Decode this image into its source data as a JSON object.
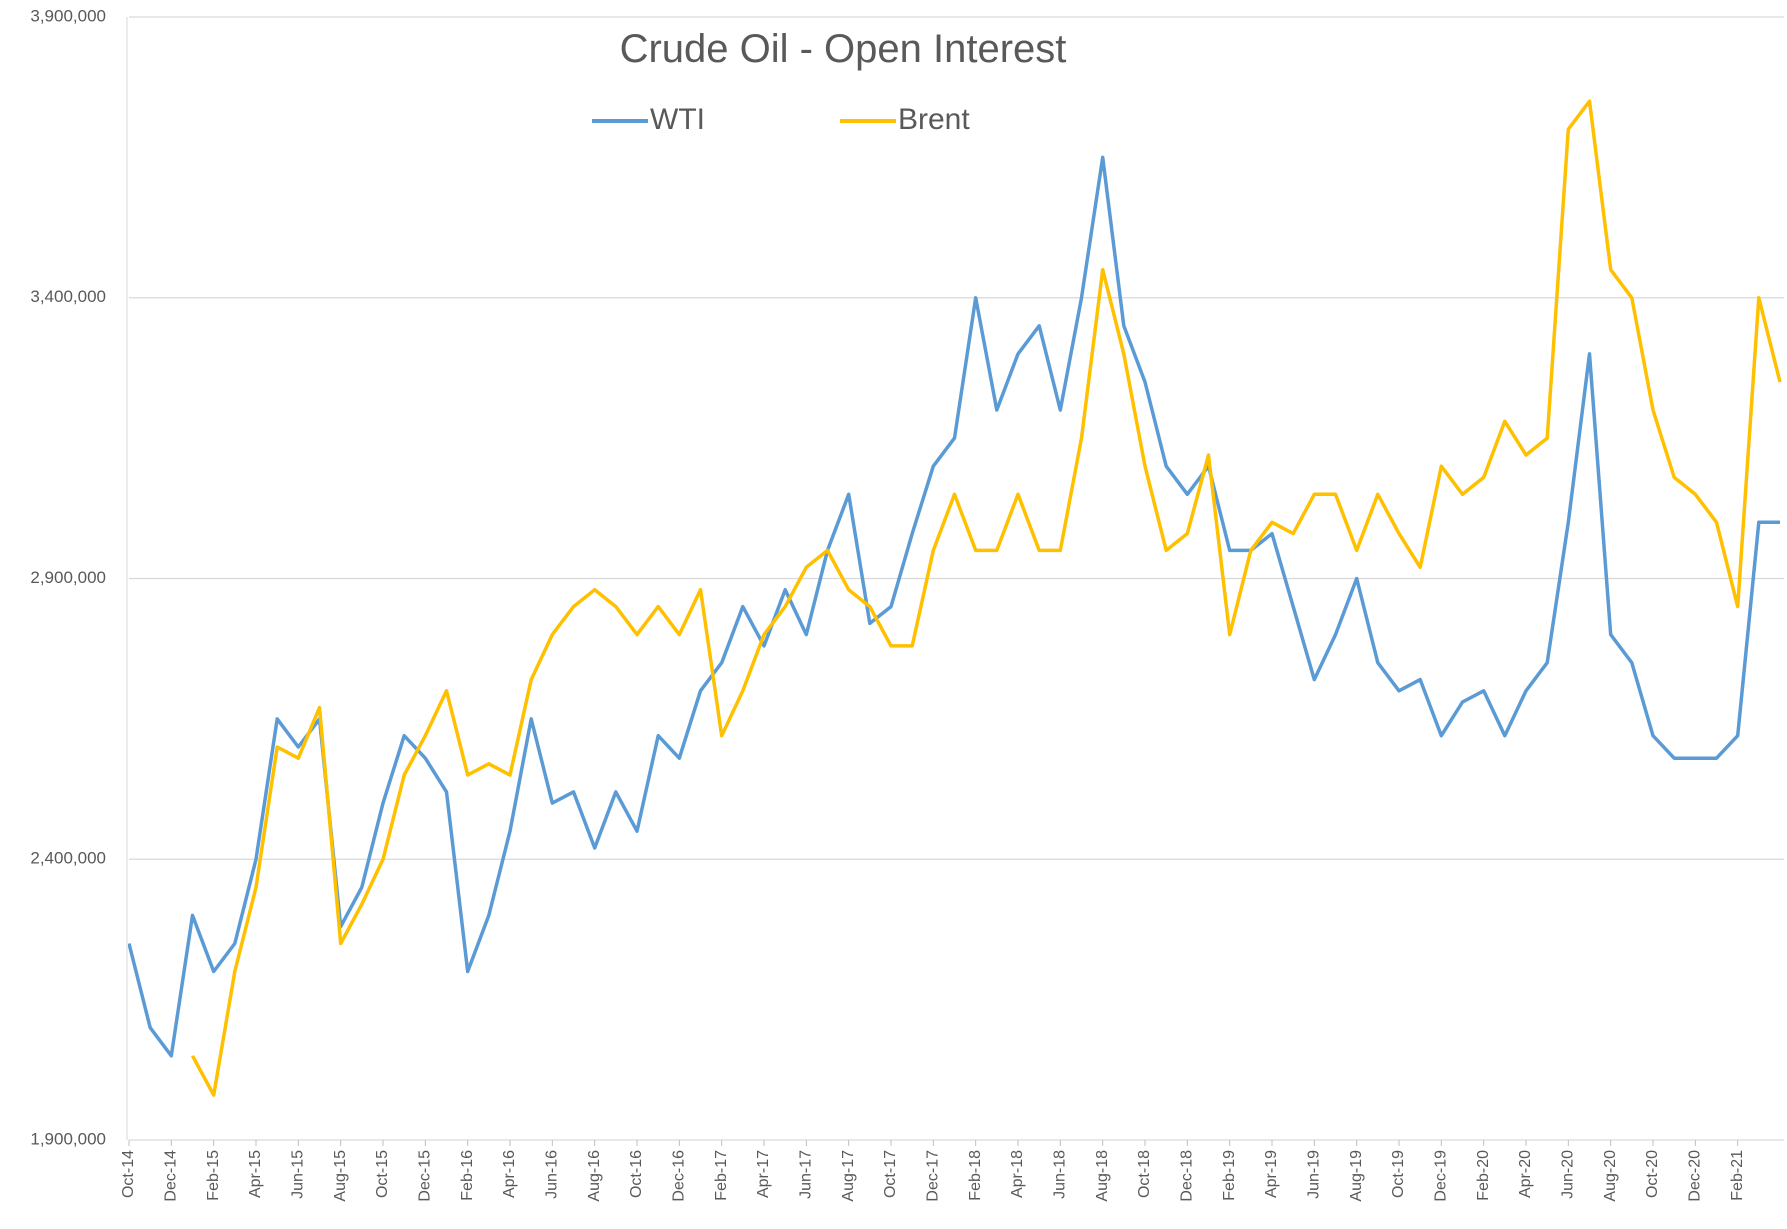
{
  "chart_data": {
    "type": "line",
    "title": "Crude Oil - Open Interest",
    "categories": [
      "Oct-14",
      null,
      "Dec-14",
      null,
      "Feb-15",
      null,
      "Apr-15",
      null,
      "Jun-15",
      null,
      "Aug-15",
      null,
      "Oct-15",
      null,
      "Dec-15",
      null,
      "Feb-16",
      null,
      "Apr-16",
      null,
      "Jun-16",
      null,
      "Aug-16",
      null,
      "Oct-16",
      null,
      "Dec-16",
      null,
      "Feb-17",
      null,
      "Apr-17",
      null,
      "Jun-17",
      null,
      "Aug-17",
      null,
      "Oct-17",
      null,
      "Dec-17",
      null,
      "Feb-18",
      null,
      "Apr-18",
      null,
      "Jun-18",
      null,
      "Aug-18",
      null,
      "Oct-18",
      null,
      "Dec-18",
      null,
      "Feb-19",
      null,
      "Apr-19",
      null,
      "Jun-19",
      null,
      "Aug-19",
      null,
      "Oct-19",
      null,
      "Dec-19",
      null,
      "Feb-20",
      null,
      "Apr-20",
      null,
      "Jun-20",
      null,
      "Aug-20",
      null,
      "Oct-20",
      null,
      "Dec-20",
      null,
      "Feb-21",
      null,
      null
    ],
    "series": [
      {
        "name": "WTI",
        "color": "#5b9bd5",
        "values": [
          2250000,
          2100000,
          2050000,
          2300000,
          2200000,
          2250000,
          2400000,
          2650000,
          2600000,
          2650000,
          2280000,
          2350000,
          2500000,
          2620000,
          2580000,
          2520000,
          2200000,
          2300000,
          2450000,
          2650000,
          2500000,
          2520000,
          2420000,
          2520000,
          2450000,
          2620000,
          2580000,
          2700000,
          2750000,
          2850000,
          2780000,
          2880000,
          2800000,
          2950000,
          3050000,
          2820000,
          2850000,
          2980000,
          3100000,
          3150000,
          3400000,
          3200000,
          3300000,
          3350000,
          3200000,
          3400000,
          3650000,
          3350000,
          3250000,
          3100000,
          3050000,
          3100000,
          2950000,
          2950000,
          2980000,
          2850000,
          2720000,
          2800000,
          2900000,
          2750000,
          2700000,
          2720000,
          2620000,
          2680000,
          2700000,
          2620000,
          2700000,
          2750000,
          3000000,
          3300000,
          2800000,
          2750000,
          2620000,
          2580000,
          2580000,
          2580000,
          2620000,
          3000000,
          3000000
        ]
      },
      {
        "name": "Brent",
        "color": "#ffc000",
        "values": [
          null,
          null,
          null,
          2050000,
          1980000,
          2200000,
          2350000,
          2600000,
          2580000,
          2670000,
          2250000,
          2320000,
          2400000,
          2550000,
          2620000,
          2700000,
          2550000,
          2570000,
          2550000,
          2720000,
          2800000,
          2850000,
          2880000,
          2850000,
          2800000,
          2850000,
          2800000,
          2880000,
          2620000,
          2700000,
          2800000,
          2850000,
          2920000,
          2950000,
          2880000,
          2850000,
          2780000,
          2780000,
          2950000,
          3050000,
          2950000,
          2950000,
          3050000,
          2950000,
          2950000,
          3150000,
          3450000,
          3300000,
          3100000,
          2950000,
          2980000,
          3120000,
          2800000,
          2950000,
          3000000,
          2980000,
          3050000,
          3050000,
          2950000,
          3050000,
          2980000,
          2920000,
          3100000,
          3050000,
          3080000,
          3180000,
          3120000,
          3150000,
          3700000,
          3750000,
          3450000,
          3400000,
          3200000,
          3080000,
          3050000,
          3000000,
          2850000,
          3400000,
          3250000
        ]
      }
    ],
    "ylim": [
      1900000,
      3900000
    ],
    "yticks": [
      {
        "value": 1900000,
        "label": "1,900,000"
      },
      {
        "value": 2400000,
        "label": "2,400,000"
      },
      {
        "value": 2900000,
        "label": "2,900,000"
      },
      {
        "value": 3400000,
        "label": "3,400,000"
      },
      {
        "value": 3900000,
        "label": "3,900,000"
      }
    ],
    "grid": true
  }
}
